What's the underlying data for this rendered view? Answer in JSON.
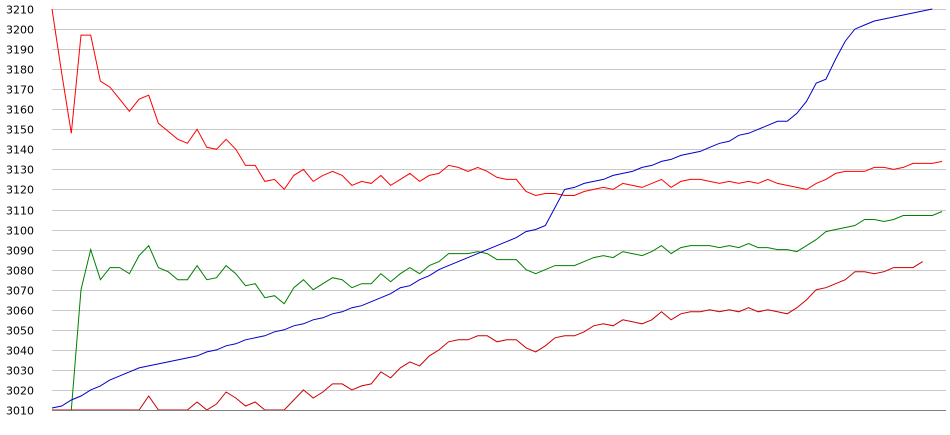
{
  "chart_data": {
    "type": "line",
    "title": "",
    "xlabel": "",
    "ylabel": "",
    "ylim": [
      3010,
      3210
    ],
    "yticks": [
      3010,
      3020,
      3030,
      3040,
      3050,
      3060,
      3070,
      3080,
      3090,
      3100,
      3110,
      3120,
      3130,
      3140,
      3150,
      3160,
      3170,
      3180,
      3190,
      3200,
      3210
    ],
    "xlim": [
      0,
      92
    ],
    "grid": true,
    "legend": "none",
    "series": [
      {
        "color": "#ff0000",
        "values": [
          3210,
          3178,
          3148,
          3197,
          3197,
          3174,
          3171,
          3165,
          3159,
          3165,
          3167,
          3153,
          3149,
          3145,
          3143,
          3150,
          3141,
          3140,
          3145,
          3140,
          3132,
          3132,
          3124,
          3125,
          3120,
          3127,
          3130,
          3124,
          3127,
          3129,
          3127,
          3122,
          3124,
          3123,
          3127,
          3122,
          3125,
          3128,
          3124,
          3127,
          3128,
          3132,
          3131,
          3129,
          3131,
          3129,
          3126,
          3125,
          3125,
          3119,
          3117,
          3118,
          3118,
          3117,
          3117,
          3119,
          3120,
          3121,
          3120,
          3123,
          3122,
          3121,
          3123,
          3125,
          3121,
          3124,
          3125,
          3125,
          3124,
          3123,
          3124,
          3123,
          3124,
          3123,
          3125,
          3123,
          3122,
          3121,
          3120,
          3123,
          3125,
          3128,
          3129,
          3129,
          3129,
          3131,
          3131,
          3130,
          3131,
          3133,
          3133,
          3133,
          3134
        ]
      },
      {
        "color": "#008000",
        "values": [
          3010,
          3010,
          3010,
          3070,
          3090,
          3075,
          3081,
          3081,
          3078,
          3087,
          3092,
          3081,
          3079,
          3075,
          3075,
          3082,
          3075,
          3076,
          3082,
          3078,
          3072,
          3073,
          3066,
          3067,
          3063,
          3071,
          3075,
          3070,
          3073,
          3076,
          3075,
          3071,
          3073,
          3073,
          3078,
          3074,
          3078,
          3081,
          3078,
          3082,
          3084,
          3088,
          3088,
          3088,
          3089,
          3088,
          3085,
          3085,
          3085,
          3080,
          3078,
          3080,
          3082,
          3082,
          3082,
          3084,
          3086,
          3087,
          3086,
          3089,
          3088,
          3087,
          3089,
          3092,
          3088,
          3091,
          3092,
          3092,
          3092,
          3091,
          3092,
          3091,
          3093,
          3091,
          3091,
          3090,
          3090,
          3089,
          3092,
          3095,
          3099,
          3100,
          3101,
          3102,
          3105,
          3105,
          3104,
          3105,
          3107,
          3107,
          3107,
          3107,
          3109
        ]
      },
      {
        "color": "#cc0000",
        "values": [
          3010,
          3010,
          3010,
          3010,
          3010,
          3010,
          3010,
          3010,
          3010,
          3010,
          3017,
          3010,
          3010,
          3010,
          3010,
          3014,
          3010,
          3013,
          3019,
          3016,
          3012,
          3014,
          3010,
          3010,
          3010,
          3015,
          3020,
          3016,
          3019,
          3023,
          3023,
          3020,
          3022,
          3023,
          3029,
          3026,
          3031,
          3034,
          3032,
          3037,
          3040,
          3044,
          3045,
          3045,
          3047,
          3047,
          3044,
          3045,
          3045,
          3041,
          3039,
          3042,
          3046,
          3047,
          3047,
          3049,
          3052,
          3053,
          3052,
          3055,
          3054,
          3053,
          3055,
          3059,
          3055,
          3058,
          3059,
          3059,
          3060,
          3059,
          3060,
          3059,
          3061,
          3059,
          3060,
          3059,
          3058,
          3061,
          3065,
          3070,
          3071,
          3073,
          3075,
          3079,
          3079,
          3078,
          3079,
          3081,
          3081,
          3081,
          3084
        ]
      },
      {
        "color": "#0000cc",
        "values": [
          3011,
          3012,
          3015,
          3017,
          3020,
          3022,
          3025,
          3027,
          3029,
          3031,
          3032,
          3033,
          3034,
          3035,
          3036,
          3037,
          3039,
          3040,
          3042,
          3043,
          3045,
          3046,
          3047,
          3049,
          3050,
          3052,
          3053,
          3055,
          3056,
          3058,
          3059,
          3061,
          3062,
          3064,
          3066,
          3068,
          3071,
          3072,
          3075,
          3077,
          3080,
          3082,
          3084,
          3086,
          3088,
          3090,
          3092,
          3094,
          3096,
          3099,
          3100,
          3102,
          3111,
          3120,
          3121,
          3123,
          3124,
          3125,
          3127,
          3128,
          3129,
          3131,
          3132,
          3134,
          3135,
          3137,
          3138,
          3139,
          3141,
          3143,
          3144,
          3147,
          3148,
          3150,
          3152,
          3154,
          3154,
          3158,
          3164,
          3173,
          3175,
          3185,
          3194,
          3200,
          3202,
          3204,
          3205,
          3206,
          3207,
          3208,
          3209,
          3210
        ]
      }
    ]
  }
}
